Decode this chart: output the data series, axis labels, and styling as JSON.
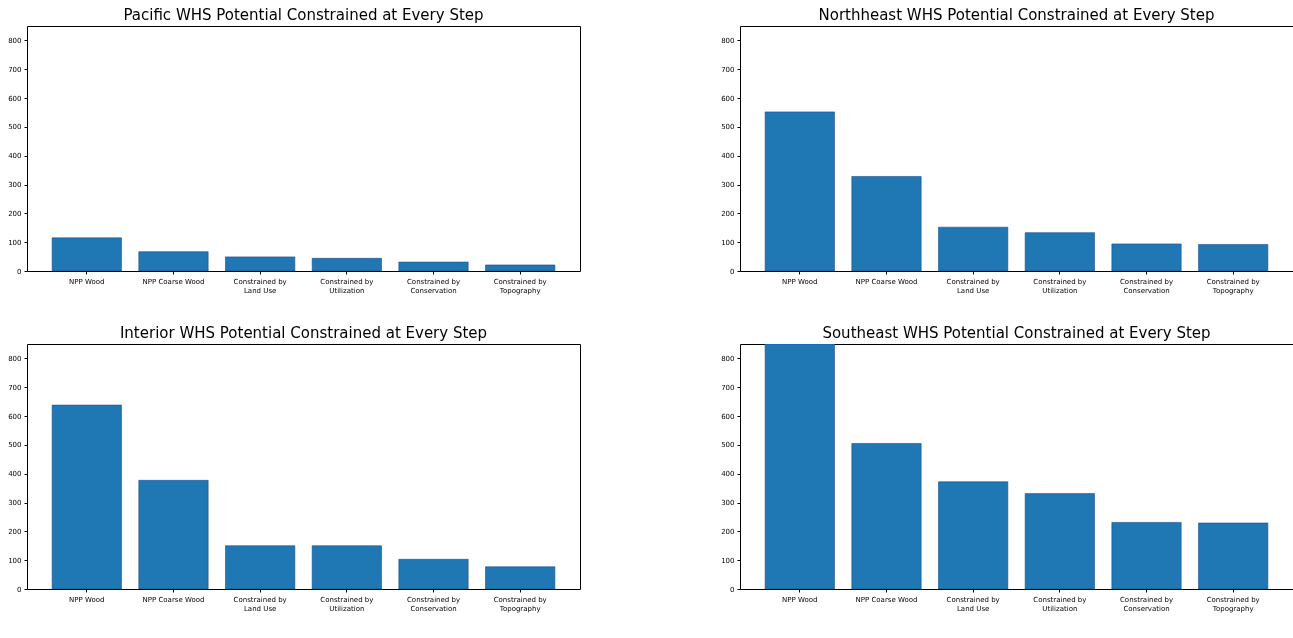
{
  "chart_data": [
    {
      "type": "bar",
      "title": "Pacific WHS Potential Constrained at Every Step",
      "categories": [
        "NPP Wood",
        "NPP Coarse Wood",
        "Constrained by Land Use",
        "Constrained by Utilization",
        "Constrained by Conservation",
        "Constrained by Topography"
      ],
      "values": [
        115,
        67,
        49,
        44,
        31,
        21
      ],
      "color": "#1f77b4",
      "ylim": [
        0,
        850
      ],
      "yticks": [
        0,
        100,
        200,
        300,
        400,
        500,
        600,
        700,
        800
      ]
    },
    {
      "type": "bar",
      "title": "Northheast WHS Potential Constrained at Every Step",
      "categories": [
        "NPP Wood",
        "NPP Coarse Wood",
        "Constrained by Land Use",
        "Constrained by Utilization",
        "Constrained by Conservation",
        "Constrained by Topography"
      ],
      "values": [
        552,
        328,
        152,
        133,
        94,
        92
      ],
      "color": "#1f77b4",
      "ylim": [
        0,
        850
      ],
      "yticks": [
        0,
        100,
        200,
        300,
        400,
        500,
        600,
        700,
        800
      ]
    },
    {
      "type": "bar",
      "title": "Interior WHS Potential Constrained at Every Step",
      "categories": [
        "NPP Wood",
        "NPP Coarse Wood",
        "Constrained by Land Use",
        "Constrained by Utilization",
        "Constrained by Conservation",
        "Constrained by Topography"
      ],
      "values": [
        638,
        377,
        150,
        150,
        103,
        77
      ],
      "color": "#1f77b4",
      "ylim": [
        0,
        850
      ],
      "yticks": [
        0,
        100,
        200,
        300,
        400,
        500,
        600,
        700,
        800
      ]
    },
    {
      "type": "bar",
      "title": "Southeast WHS Potential Constrained at Every Step",
      "categories": [
        "NPP Wood",
        "NPP Coarse Wood",
        "Constrained by Land Use",
        "Constrained by Utilization",
        "Constrained by Conservation",
        "Constrained by Topography"
      ],
      "values": [
        850,
        505,
        372,
        331,
        231,
        229
      ],
      "color": "#1f77b4",
      "ylim": [
        0,
        850
      ],
      "yticks": [
        0,
        100,
        200,
        300,
        400,
        500,
        600,
        700,
        800
      ]
    }
  ]
}
